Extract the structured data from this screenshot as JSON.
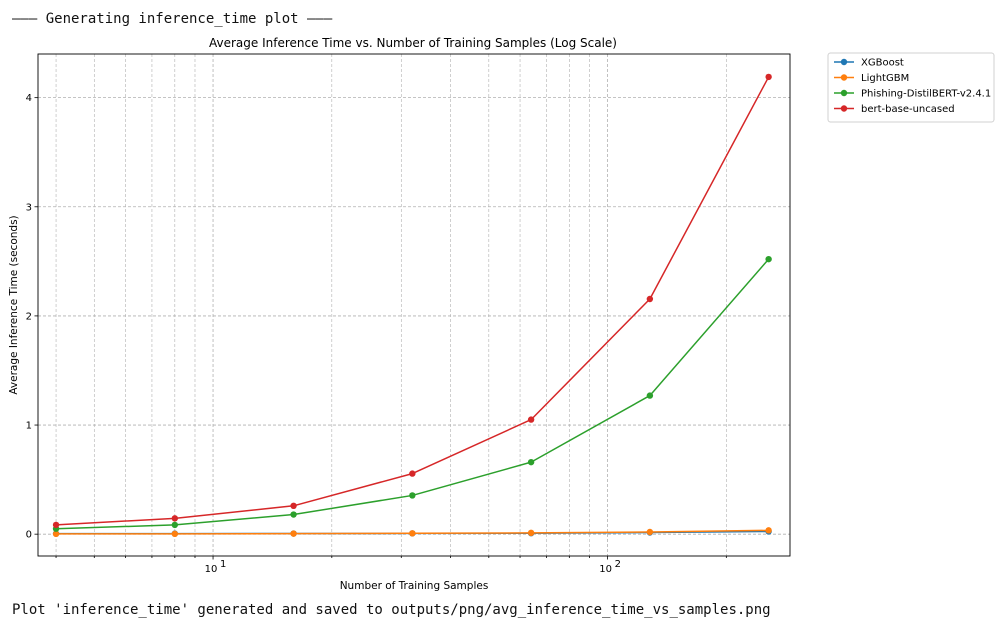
{
  "console": {
    "header": "——— Generating inference_time plot ———",
    "footer": "Plot 'inference_time' generated and saved to outputs/png/avg_inference_time_vs_samples.png"
  },
  "chart_data": {
    "type": "line",
    "title": "Average Inference Time vs. Number of Training Samples (Log Scale)",
    "xlabel": "Number of Training Samples",
    "ylabel": "Average Inference Time (seconds)",
    "x_scale": "log",
    "xlim": [
      3.6,
      290
    ],
    "ylim": [
      -0.2,
      4.4
    ],
    "grid": true,
    "legend_position": "outside-top-right",
    "x": [
      4,
      8,
      16,
      32,
      64,
      128,
      256
    ],
    "y_ticks": [
      0,
      1,
      2,
      3,
      4
    ],
    "x_tick_labels": [
      {
        "base": "10",
        "exp": "1",
        "value": 10
      },
      {
        "base": "10",
        "exp": "2",
        "value": 100
      }
    ],
    "series": [
      {
        "name": "XGBoost",
        "color": "#1f77b4",
        "values": [
          0.005,
          0.005,
          0.006,
          0.007,
          0.009,
          0.015,
          0.025
        ]
      },
      {
        "name": "LightGBM",
        "color": "#ff7f0e",
        "values": [
          0.003,
          0.003,
          0.005,
          0.008,
          0.012,
          0.02,
          0.035
        ]
      },
      {
        "name": "Phishing-DistilBERT-v2.4.1",
        "color": "#2ca02c",
        "values": [
          0.05,
          0.085,
          0.18,
          0.355,
          0.66,
          1.27,
          2.52
        ]
      },
      {
        "name": "bert-base-uncased",
        "color": "#d62728",
        "values": [
          0.085,
          0.145,
          0.26,
          0.555,
          1.05,
          2.155,
          4.19
        ]
      }
    ]
  }
}
